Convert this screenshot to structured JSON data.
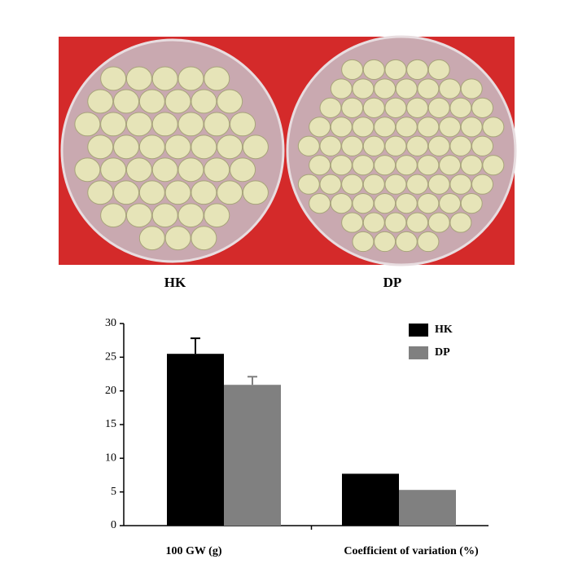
{
  "photo": {
    "labels": [
      "HK",
      "DP"
    ]
  },
  "chart_data": {
    "type": "bar",
    "categories": [
      "100 GW (g)",
      "Coefficient of variation (%)"
    ],
    "series": [
      {
        "name": "HK",
        "color": "#000000",
        "values": [
          25.5,
          7.7
        ],
        "errors": [
          2.3,
          null
        ]
      },
      {
        "name": "DP",
        "color": "#808080",
        "values": [
          20.9,
          5.3
        ],
        "errors": [
          1.2,
          null
        ]
      }
    ],
    "ylim": [
      0,
      30
    ],
    "yticks": [
      0,
      5,
      10,
      15,
      20,
      25,
      30
    ],
    "legend": "upper right"
  }
}
